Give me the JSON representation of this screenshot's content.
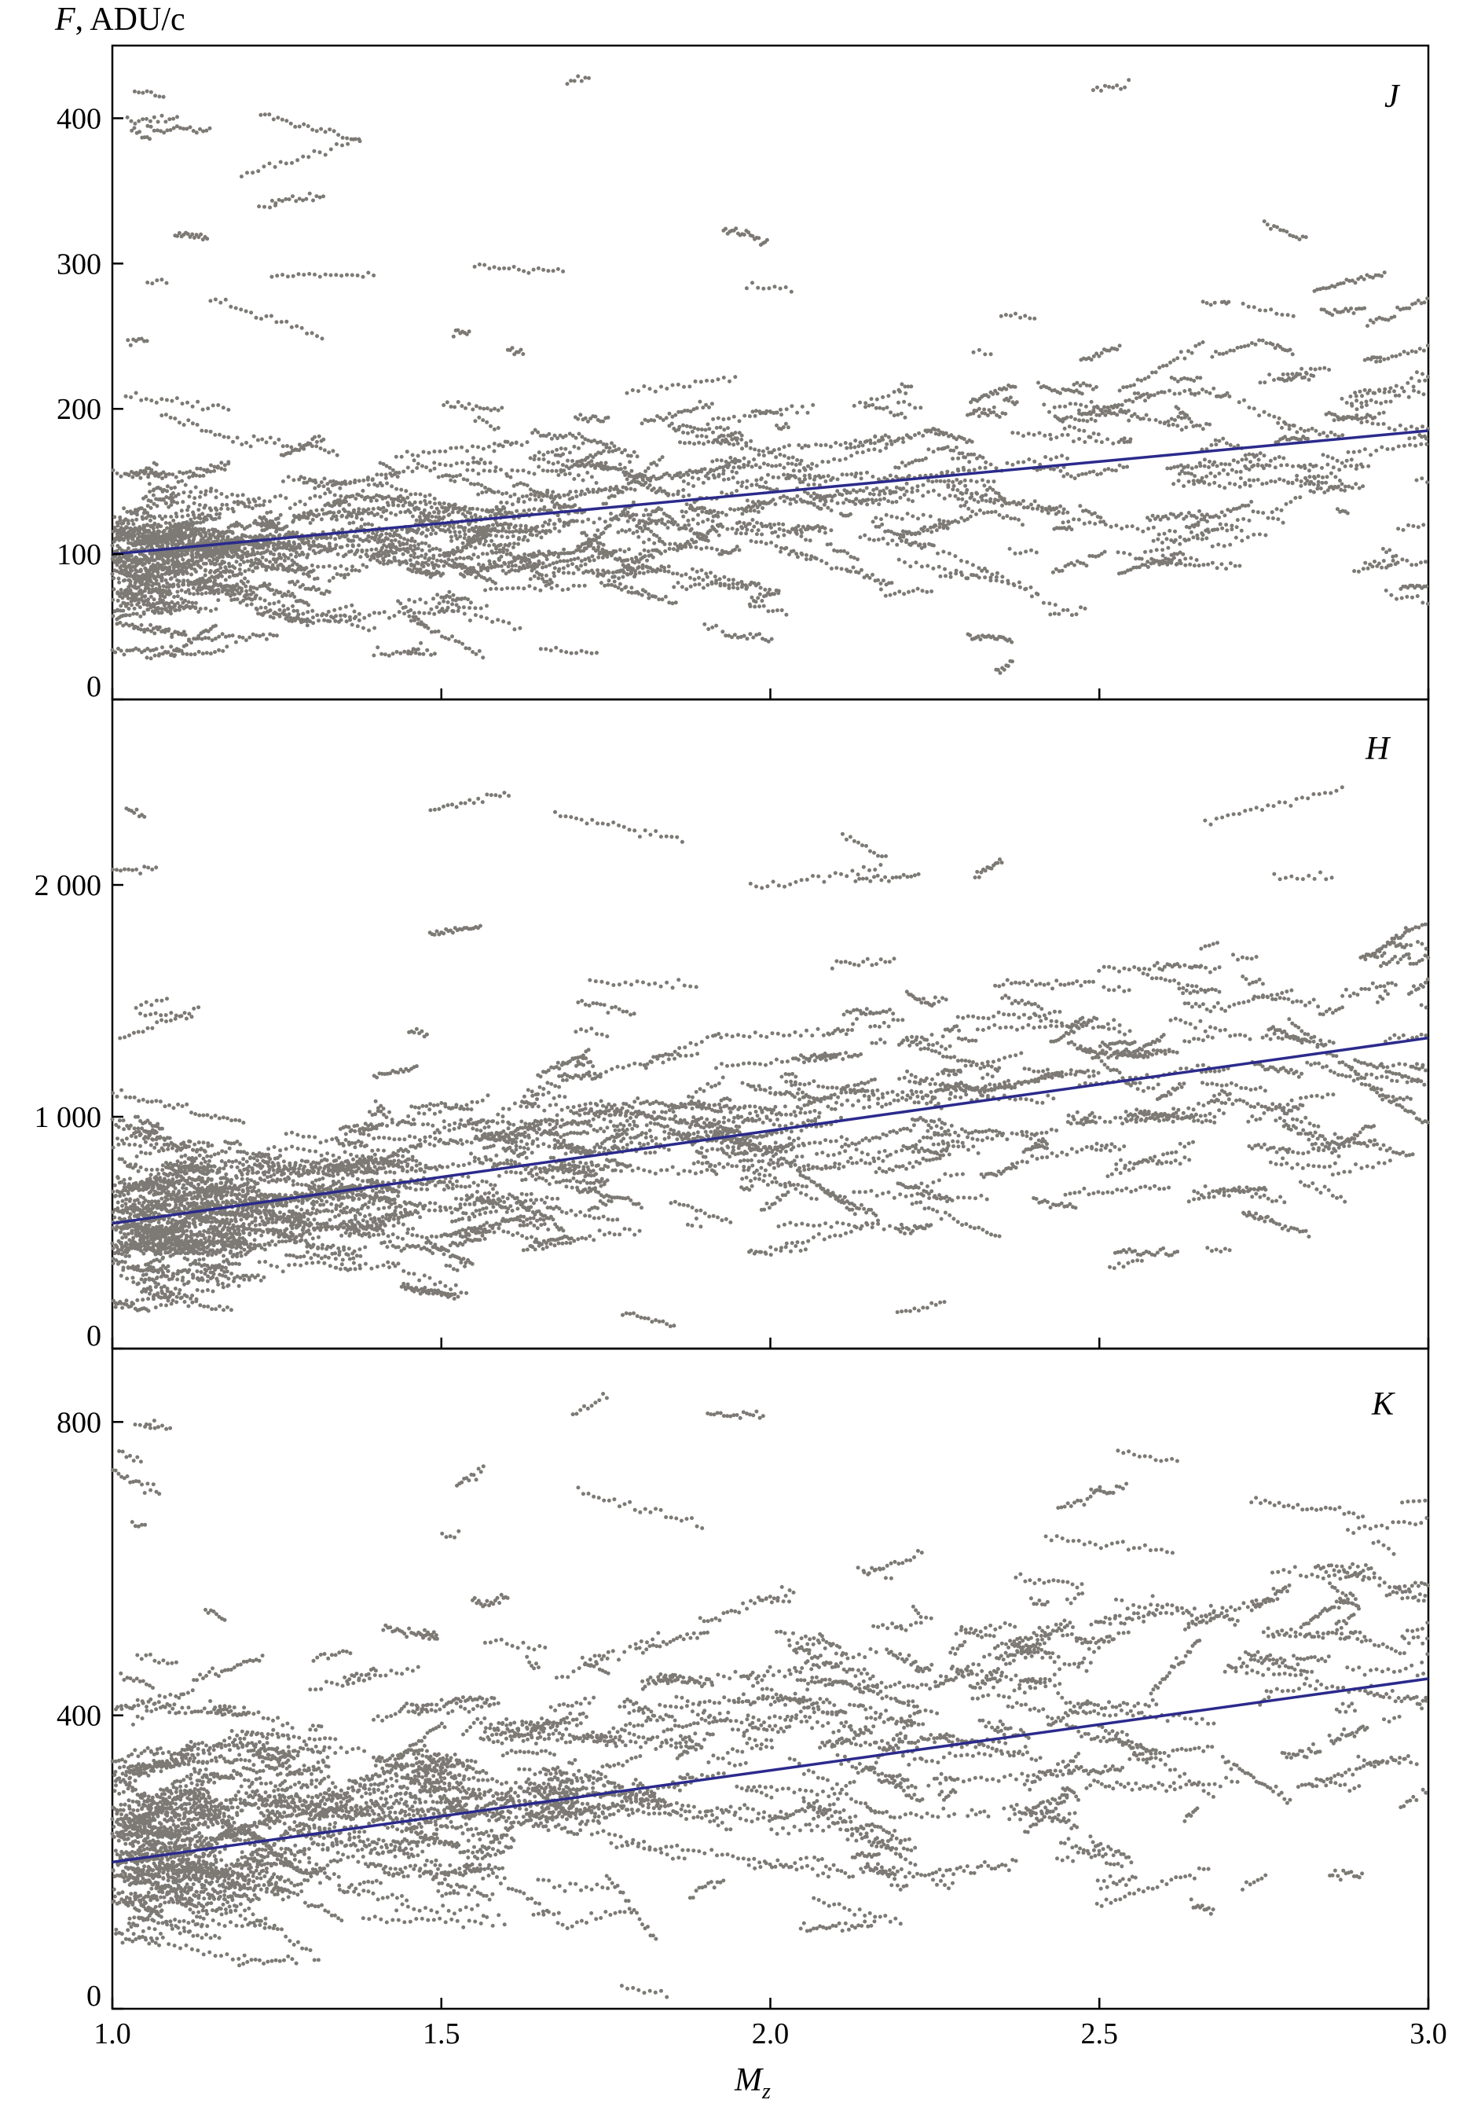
{
  "chart_data": {
    "type": "scatter",
    "ylabel_symbol": "F",
    "ylabel_unit": ", ADU/c",
    "xlabel_symbol": "M",
    "xlabel_subscript": "z",
    "xlim": [
      1.0,
      3.0
    ],
    "x_ticks": [
      "1.0",
      "1.5",
      "2.0",
      "2.5",
      "3.0"
    ],
    "point_color": "#7d7a75",
    "fit_line_color": "#2b2a8c",
    "panels": [
      {
        "band": "J",
        "ylim": [
          0,
          450
        ],
        "y_ticks": [
          {
            "value": 0,
            "label": "0"
          },
          {
            "value": 100,
            "label": "100"
          },
          {
            "value": 200,
            "label": "200"
          },
          {
            "value": 300,
            "label": "300"
          },
          {
            "value": 400,
            "label": "400"
          }
        ],
        "fit_line": {
          "x": [
            1.0,
            3.0
          ],
          "y": [
            100,
            185
          ]
        },
        "cloud": {
          "base": 95,
          "slope": 42,
          "spread": 42,
          "outlier_max": 430
        }
      },
      {
        "band": "H",
        "ylim": [
          0,
          2800
        ],
        "y_ticks": [
          {
            "value": 0,
            "label": "0"
          },
          {
            "value": 1000,
            "label": "1 000"
          },
          {
            "value": 2000,
            "label": "2 000"
          }
        ],
        "fit_line": {
          "x": [
            1.0,
            3.0
          ],
          "y": [
            540,
            1340
          ]
        },
        "cloud": {
          "base": 560,
          "slope": 380,
          "spread": 260,
          "outlier_max": 2350
        }
      },
      {
        "band": "K",
        "ylim": [
          0,
          900
        ],
        "y_ticks": [
          {
            "value": 0,
            "label": "0"
          },
          {
            "value": 400,
            "label": "400"
          },
          {
            "value": 800,
            "label": "800"
          }
        ],
        "fit_line": {
          "x": [
            1.0,
            3.0
          ],
          "y": [
            200,
            450
          ]
        },
        "cloud": {
          "base": 230,
          "slope": 120,
          "spread": 110,
          "outlier_max": 850
        }
      }
    ]
  }
}
